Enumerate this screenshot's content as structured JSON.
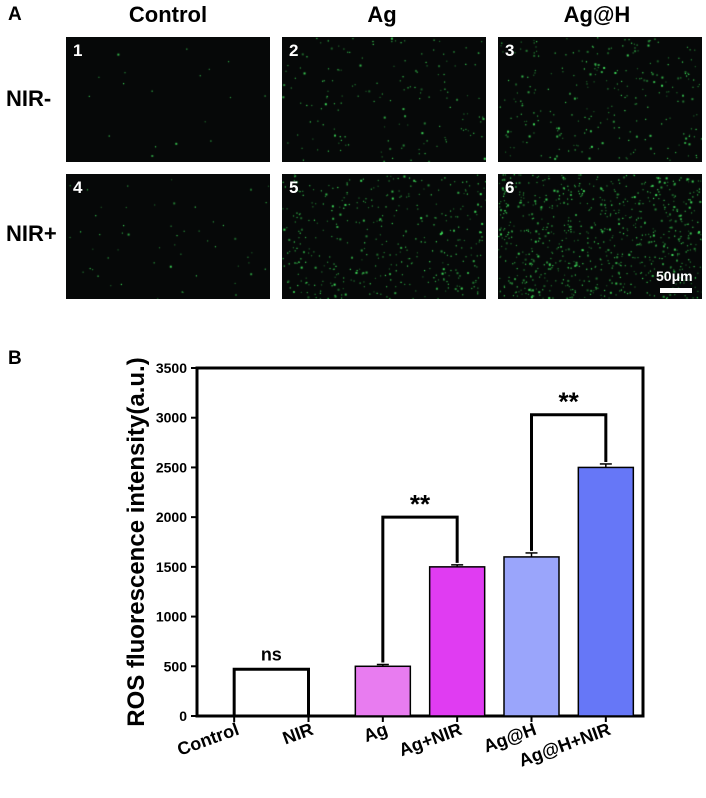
{
  "panel_a": {
    "label": "A",
    "columns": [
      "Control",
      "Ag",
      "Ag@H"
    ],
    "rows": [
      "NIR-",
      "NIR+"
    ],
    "images": [
      {
        "number": "1",
        "green_density": 0.02
      },
      {
        "number": "2",
        "green_density": 0.18
      },
      {
        "number": "3",
        "green_density": 0.3
      },
      {
        "number": "4",
        "green_density": 0.06
      },
      {
        "number": "5",
        "green_density": 0.45
      },
      {
        "number": "6",
        "green_density": 0.85
      }
    ],
    "scale_bar": "50μm",
    "colors": {
      "background": "#060808",
      "fluorescence": "#3ee05a"
    }
  },
  "panel_b": {
    "label": "B"
  },
  "chart_data": {
    "type": "bar",
    "categories": [
      "Control",
      "NIR",
      "Ag",
      "Ag+NIR",
      "Ag@H",
      "Ag@H+NIR"
    ],
    "values": [
      0,
      0,
      500,
      1500,
      1600,
      2500
    ],
    "errors": [
      0,
      0,
      18,
      20,
      40,
      35
    ],
    "colors": [
      "#e87cf0",
      "#e87cf0",
      "#e87cf0",
      "#e03cf2",
      "#9aa5fb",
      "#6677f7"
    ],
    "ylabel": "ROS fluorescence intensity(a.u.)",
    "xlabel": "",
    "ylim": [
      0,
      3500
    ],
    "yticks": [
      0,
      500,
      1000,
      1500,
      2000,
      2500,
      3000,
      3500
    ],
    "annotations": [
      {
        "text": "ns",
        "from": "Control",
        "to": "NIR",
        "level": 470
      },
      {
        "text": "**",
        "from": "Ag",
        "to": "Ag+NIR",
        "level": 2000
      },
      {
        "text": "**",
        "from": "Ag@H",
        "to": "Ag@H+NIR",
        "level": 3030
      }
    ],
    "grid": false
  }
}
